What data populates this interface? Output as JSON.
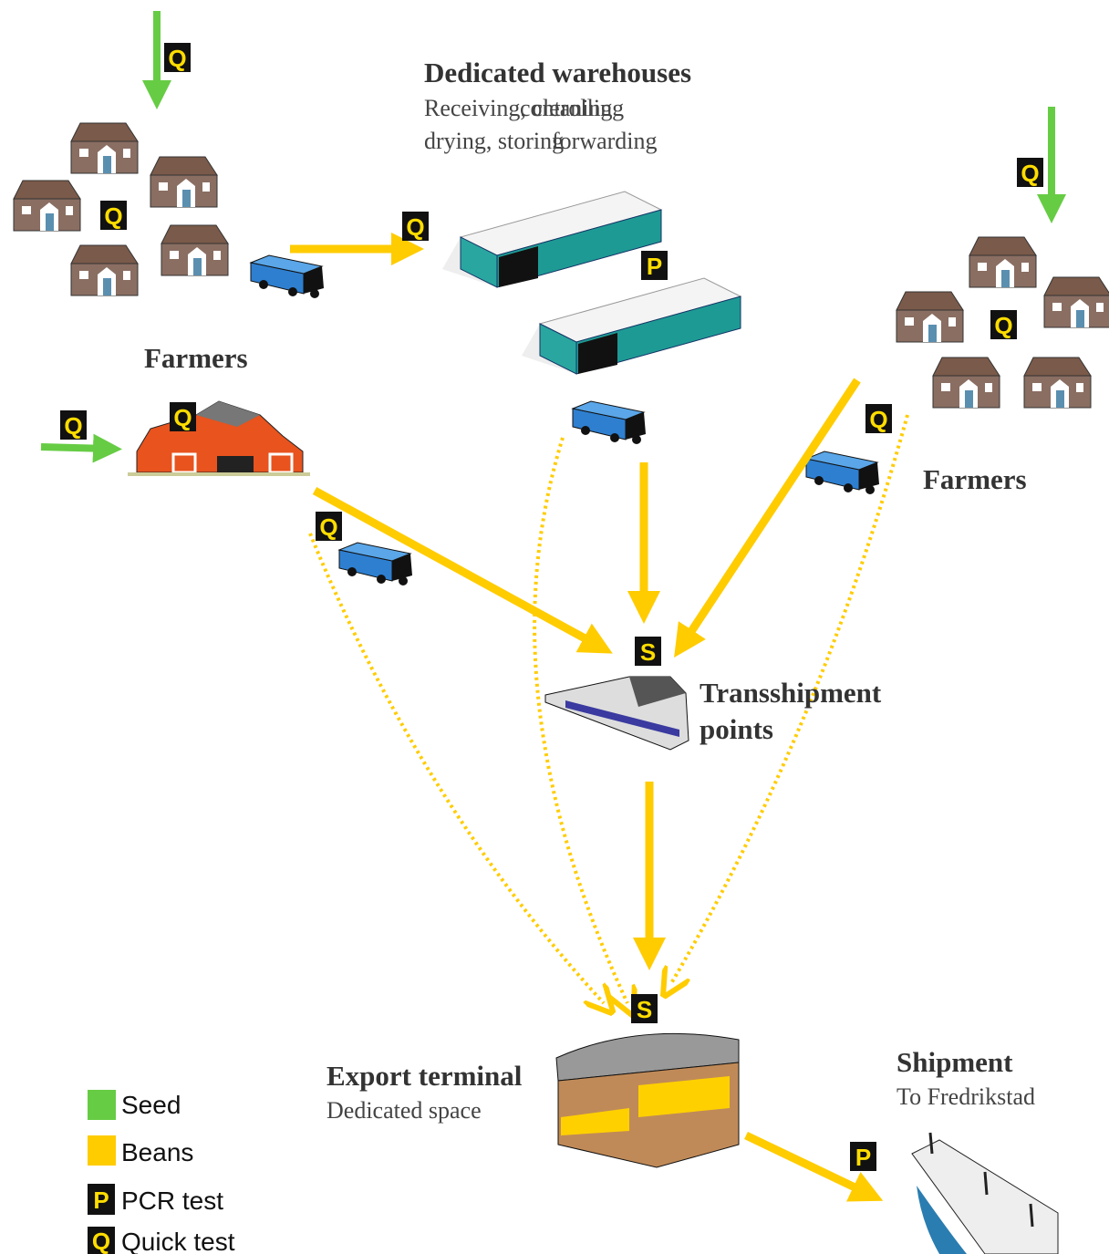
{
  "title": {
    "heading": "Dedicated warehouses",
    "line1a": "Receiving, cleaning",
    "line1b": "controlling",
    "line2a": "drying, storing",
    "line2b": "forwarding"
  },
  "nodes": [
    {
      "label": "Farmers"
    },
    {
      "label": "Farmers"
    },
    {
      "label": "Transshipment",
      "label2": "points"
    },
    {
      "label": "Export terminal",
      "sublabel": "Dedicated space"
    },
    {
      "label": "Shipment",
      "sublabel": "To Fredrikstad"
    }
  ],
  "badges": [
    "Q",
    "Q",
    "Q",
    "P",
    "Q",
    "Q",
    "Q",
    "Q",
    "Q",
    "Q",
    "S",
    "S",
    "P"
  ],
  "legend": [
    {
      "label": "Seed"
    },
    {
      "label": "Beans"
    },
    {
      "badge": "P",
      "label": "PCR test"
    },
    {
      "badge": "Q",
      "label": "Quick test"
    }
  ]
}
